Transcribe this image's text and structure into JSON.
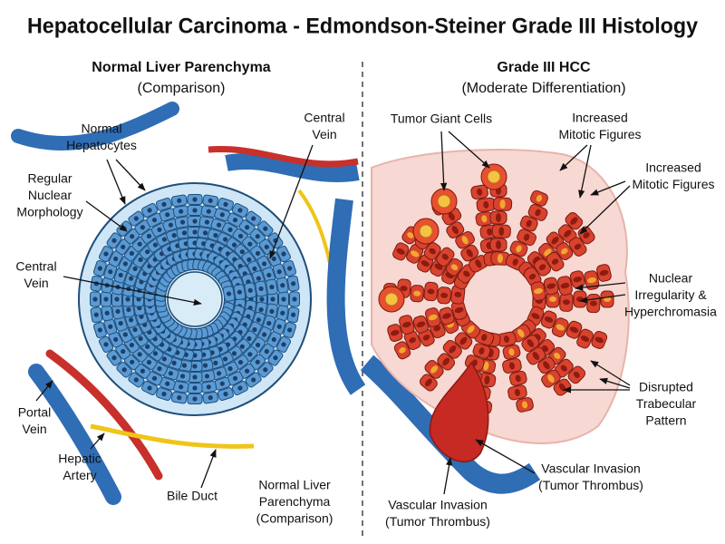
{
  "title": "Hepatocellular Carcinoma - Edmondson-Steiner Grade III Histology",
  "left": {
    "heading": "Normal Liver Parenchyma",
    "subheading": "(Comparison)",
    "labels": [
      {
        "lines": [
          "Normal",
          "Hepatocytes"
        ]
      },
      {
        "lines": [
          "Regular",
          "Nuclear",
          "Morphology"
        ]
      },
      {
        "lines": [
          "Central",
          "Vein"
        ]
      },
      {
        "lines": [
          "Central",
          "Vein"
        ]
      },
      {
        "lines": [
          "Portal",
          "Vein"
        ]
      },
      {
        "lines": [
          "Hepatic",
          "Artery"
        ]
      },
      {
        "lines": [
          "Bile Duct"
        ]
      },
      {
        "lines": [
          "Normal Liver",
          "Parenchyma",
          "(Comparison)"
        ]
      }
    ]
  },
  "right": {
    "heading": "Grade III HCC",
    "subheading": "(Moderate Differentiation)",
    "labels": [
      {
        "lines": [
          "Tumor Giant Cells"
        ]
      },
      {
        "lines": [
          "Increased",
          "Mitotic Figures"
        ]
      },
      {
        "lines": [
          "Increased",
          "Mitotic Figures"
        ]
      },
      {
        "lines": [
          "Nuclear",
          "Irregularity &",
          "Hyperchromasia"
        ]
      },
      {
        "lines": [
          "Disrupted",
          "Trabecular",
          "Pattern"
        ]
      },
      {
        "lines": [
          "Vascular Invasion",
          "(Tumor Thrombus)"
        ]
      },
      {
        "lines": [
          "Vascular Invasion",
          "(Tumor Thrombus)"
        ]
      }
    ]
  }
}
